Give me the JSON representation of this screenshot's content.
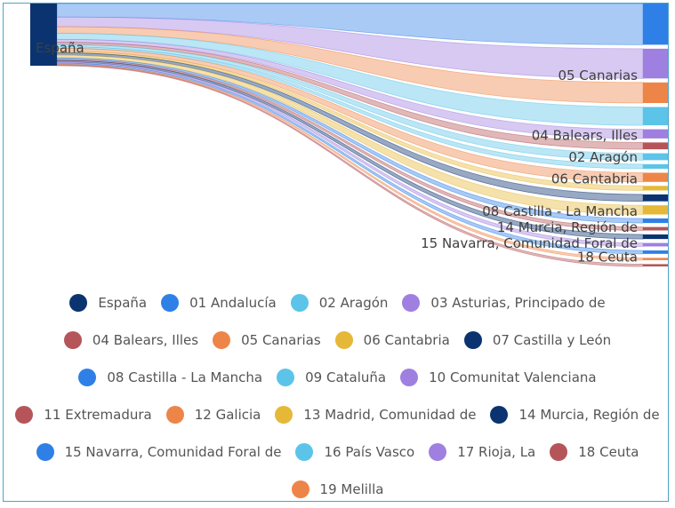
{
  "chart_data": {
    "type": "sankey",
    "source": {
      "name": "España",
      "color": "#0b3370"
    },
    "flows": [
      {
        "target": "01 Andalucía",
        "value": 18,
        "color": "#2f80e6",
        "labeled": true
      },
      {
        "target": "03 Asturias, Principado de",
        "value": 13,
        "color": "#9f7fe0",
        "labeled": false
      },
      {
        "target": "05 Canarias",
        "value": 9,
        "color": "#ee8548",
        "labeled": true
      },
      {
        "target": "09 Cataluña",
        "value": 8,
        "color": "#5cc4e8",
        "labeled": false
      },
      {
        "target": "10 Comunitat Valenciana",
        "value": 4,
        "color": "#9f7fe0",
        "labeled": false
      },
      {
        "target": "04 Balears, Illes",
        "value": 3,
        "color": "#b5555a",
        "labeled": true
      },
      {
        "target": "16 País Vasco",
        "value": 3,
        "color": "#5cc4e8",
        "labeled": false
      },
      {
        "target": "02 Aragón",
        "value": 2,
        "color": "#5cc4e8",
        "labeled": true
      },
      {
        "target": "12 Galicia",
        "value": 4,
        "color": "#ee8548",
        "labeled": false
      },
      {
        "target": "06 Cantabria",
        "value": 2,
        "color": "#e6b838",
        "labeled": true
      },
      {
        "target": "07 Castilla y León",
        "value": 3,
        "color": "#0b3370",
        "labeled": false
      },
      {
        "target": "13 Madrid, Comunidad de",
        "value": 4,
        "color": "#e6b838",
        "labeled": false
      },
      {
        "target": "08 Castilla - La Mancha",
        "value": 2,
        "color": "#2f80e6",
        "labeled": true
      },
      {
        "target": "11 Extremadura",
        "value": 1.5,
        "color": "#b5555a",
        "labeled": false
      },
      {
        "target": "14 Murcia, Región de",
        "value": 2,
        "color": "#0b3370",
        "labeled": true
      },
      {
        "target": "17 Rioja, La",
        "value": 1.5,
        "color": "#9f7fe0",
        "labeled": false
      },
      {
        "target": "15 Navarra, Comunidad Foral de",
        "value": 1.5,
        "color": "#2f80e6",
        "labeled": true
      },
      {
        "target": "19 Melilla",
        "value": 1,
        "color": "#ee8548",
        "labeled": false
      },
      {
        "target": "18 Ceuta",
        "value": 1,
        "color": "#b5555a",
        "labeled": true
      }
    ],
    "legend": {
      "placement": "bottom",
      "rows": [
        [
          {
            "label": "España",
            "color": "#0b3370"
          },
          {
            "label": "01 Andalucía",
            "color": "#2f80e6"
          },
          {
            "label": "02 Aragón",
            "color": "#5cc4e8"
          },
          {
            "label": "03 Asturias, Principado de",
            "color": "#9f7fe0"
          }
        ],
        [
          {
            "label": "04 Balears, Illes",
            "color": "#b5555a"
          },
          {
            "label": "05 Canarias",
            "color": "#ee8548"
          },
          {
            "label": "06 Cantabria",
            "color": "#e6b838"
          },
          {
            "label": "07 Castilla y León",
            "color": "#0b3370"
          }
        ],
        [
          {
            "label": "08 Castilla - La Mancha",
            "color": "#2f80e6"
          },
          {
            "label": "09 Cataluña",
            "color": "#5cc4e8"
          },
          {
            "label": "10 Comunitat Valenciana",
            "color": "#9f7fe0"
          }
        ],
        [
          {
            "label": "11 Extremadura",
            "color": "#b5555a"
          },
          {
            "label": "12 Galicia",
            "color": "#ee8548"
          },
          {
            "label": "13 Madrid, Comunidad de",
            "color": "#e6b838"
          },
          {
            "label": "14 Murcia, Región de",
            "color": "#0b3370"
          }
        ],
        [
          {
            "label": "15 Navarra, Comunidad Foral de",
            "color": "#2f80e6"
          },
          {
            "label": "16 País Vasco",
            "color": "#5cc4e8"
          },
          {
            "label": "17 Rioja, La",
            "color": "#9f7fe0"
          },
          {
            "label": "18 Ceuta",
            "color": "#b5555a"
          }
        ],
        [
          {
            "label": "19 Melilla",
            "color": "#ee8548"
          }
        ]
      ]
    }
  }
}
